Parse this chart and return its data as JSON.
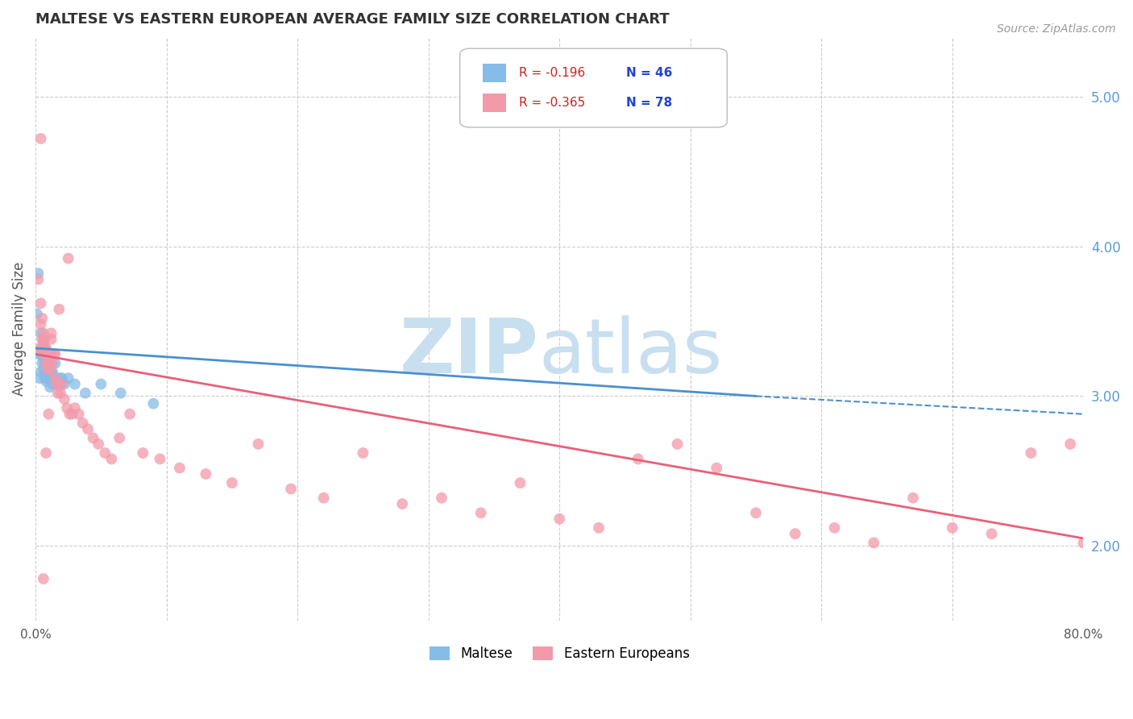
{
  "title": "MALTESE VS EASTERN EUROPEAN AVERAGE FAMILY SIZE CORRELATION CHART",
  "source": "Source: ZipAtlas.com",
  "ylabel": "Average Family Size",
  "xlim": [
    0.0,
    0.8
  ],
  "ylim": [
    1.5,
    5.4
  ],
  "yticks": [
    2.0,
    3.0,
    4.0,
    5.0
  ],
  "xticks": [
    0.0,
    0.1,
    0.2,
    0.3,
    0.4,
    0.5,
    0.6,
    0.7,
    0.8
  ],
  "xtick_labels": [
    "0.0%",
    "",
    "",
    "",
    "",
    "",
    "",
    "",
    "80.0%"
  ],
  "legend_r_maltese": "R = -0.196",
  "legend_n_maltese": "N = 46",
  "legend_r_eastern": "R = -0.365",
  "legend_n_eastern": "N = 78",
  "maltese_color": "#85bce8",
  "eastern_color": "#f29aaa",
  "maltese_line_color": "#4a90d0",
  "eastern_line_color": "#e8607a",
  "maltese_x": [
    0.001,
    0.002,
    0.003,
    0.003,
    0.004,
    0.004,
    0.005,
    0.005,
    0.005,
    0.006,
    0.006,
    0.006,
    0.007,
    0.007,
    0.007,
    0.008,
    0.008,
    0.008,
    0.008,
    0.009,
    0.009,
    0.009,
    0.01,
    0.01,
    0.01,
    0.011,
    0.011,
    0.011,
    0.012,
    0.012,
    0.013,
    0.013,
    0.014,
    0.015,
    0.016,
    0.017,
    0.018,
    0.019,
    0.02,
    0.022,
    0.025,
    0.03,
    0.038,
    0.05,
    0.065,
    0.09
  ],
  "maltese_y": [
    3.55,
    3.82,
    3.28,
    3.12,
    3.42,
    3.16,
    3.32,
    3.22,
    3.27,
    3.36,
    3.18,
    3.26,
    3.32,
    3.22,
    3.12,
    3.26,
    3.22,
    3.16,
    3.1,
    3.26,
    3.22,
    3.16,
    3.22,
    3.16,
    3.12,
    3.16,
    3.12,
    3.06,
    3.16,
    3.12,
    3.16,
    3.08,
    3.12,
    3.22,
    3.08,
    3.08,
    3.12,
    3.08,
    3.12,
    3.08,
    3.12,
    3.08,
    3.02,
    3.08,
    3.02,
    2.95
  ],
  "eastern_x": [
    0.002,
    0.003,
    0.004,
    0.004,
    0.005,
    0.005,
    0.006,
    0.006,
    0.007,
    0.007,
    0.008,
    0.008,
    0.009,
    0.009,
    0.01,
    0.01,
    0.011,
    0.011,
    0.012,
    0.012,
    0.013,
    0.014,
    0.015,
    0.016,
    0.017,
    0.018,
    0.019,
    0.02,
    0.022,
    0.024,
    0.026,
    0.028,
    0.03,
    0.033,
    0.036,
    0.04,
    0.044,
    0.048,
    0.053,
    0.058,
    0.064,
    0.072,
    0.082,
    0.095,
    0.11,
    0.13,
    0.15,
    0.17,
    0.195,
    0.22,
    0.25,
    0.28,
    0.31,
    0.34,
    0.37,
    0.4,
    0.43,
    0.46,
    0.49,
    0.52,
    0.55,
    0.58,
    0.61,
    0.64,
    0.67,
    0.7,
    0.73,
    0.76,
    0.79,
    0.8,
    0.025,
    0.018,
    0.015,
    0.012,
    0.01,
    0.008,
    0.006,
    0.004
  ],
  "eastern_y": [
    3.78,
    3.32,
    3.62,
    3.48,
    3.52,
    3.38,
    3.42,
    3.32,
    3.38,
    3.28,
    3.32,
    3.22,
    3.18,
    3.28,
    3.28,
    3.22,
    3.28,
    3.18,
    3.38,
    3.28,
    3.22,
    3.28,
    3.12,
    3.08,
    3.02,
    3.08,
    3.02,
    3.08,
    2.98,
    2.92,
    2.88,
    2.88,
    2.92,
    2.88,
    2.82,
    2.78,
    2.72,
    2.68,
    2.62,
    2.58,
    2.72,
    2.88,
    2.62,
    2.58,
    2.52,
    2.48,
    2.42,
    2.68,
    2.38,
    2.32,
    2.62,
    2.28,
    2.32,
    2.22,
    2.42,
    2.18,
    2.12,
    2.58,
    2.68,
    2.52,
    2.22,
    2.08,
    2.12,
    2.02,
    2.32,
    2.12,
    2.08,
    2.62,
    2.68,
    2.02,
    3.92,
    3.58,
    3.28,
    3.42,
    2.88,
    2.62,
    1.78,
    4.72
  ]
}
